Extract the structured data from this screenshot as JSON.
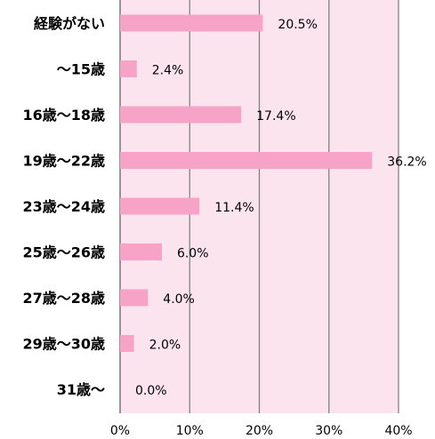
{
  "chart_data": {
    "type": "bar",
    "orientation": "horizontal",
    "categories": [
      "経験がない",
      "〜15歳",
      "16歳〜18歳",
      "19歳〜22歳",
      "23歳〜24歳",
      "25歳〜26歳",
      "27歳〜28歳",
      "29歳〜30歳",
      "31歳〜"
    ],
    "values": [
      20.5,
      2.4,
      17.4,
      36.2,
      11.4,
      6.0,
      4.0,
      2.0,
      0.0
    ],
    "value_labels": [
      "20.5%",
      "2.4%",
      "17.4%",
      "36.2%",
      "11.4%",
      "6.0%",
      "4.0%",
      "2.0%",
      "0.0%"
    ],
    "x_ticks": [
      0,
      10,
      20,
      30,
      40
    ],
    "x_tick_labels": [
      "0%",
      "10%",
      "20%",
      "30%",
      "40%"
    ],
    "xlim": [
      0,
      40
    ],
    "title": "",
    "xlabel": "",
    "ylabel": "",
    "grid": true,
    "colors": {
      "bar": "#f7a3c8",
      "plot_background": "#fce4ef",
      "gridline": "#7a7a7a"
    }
  }
}
